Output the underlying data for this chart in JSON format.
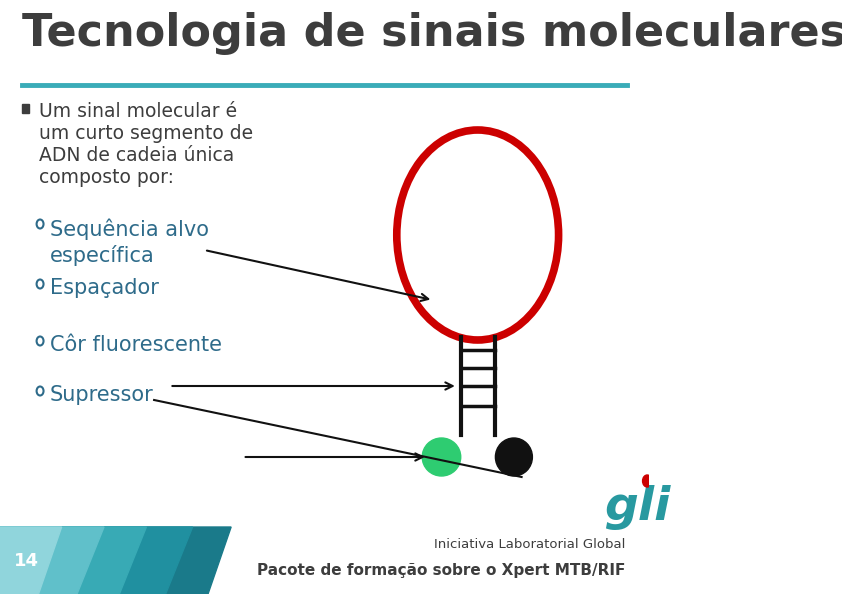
{
  "title": "Tecnologia de sinais moleculares",
  "title_color": "#3d3d3d",
  "title_fontsize": 32,
  "bg_color": "#ffffff",
  "line_color": "#3aacb8",
  "bullet_color": "#3d3d3d",
  "bullet_fontsize": 13.5,
  "bullet_lines": [
    "Um sinal molecular é",
    "um curto segmento de",
    "ADN de cadeia única",
    "composto por:"
  ],
  "sub_items": [
    "Sequência alvo\nespecífica",
    "Espaçador",
    "Côr fluorescente",
    "Supressor"
  ],
  "sub_color": "#2e6b8a",
  "sub_fontsize": 15,
  "footer_text1": "Iniciativa Laboratorial Global",
  "footer_text2": "Pacote de formação sobre o Xpert MTB/RIF",
  "footer_num": "14",
  "circle_color": "#cc0000",
  "green_dot_color": "#2ecc71",
  "black_dot_color": "#111111",
  "stem_color": "#111111",
  "arrow_color": "#111111",
  "footer_colors": [
    "#1a7a8a",
    "#2899a0",
    "#48b0b8",
    "#78cdd4",
    "#a8dfe3"
  ],
  "gli_color": "#2899a0",
  "gli_dot_color": "#cc0000"
}
